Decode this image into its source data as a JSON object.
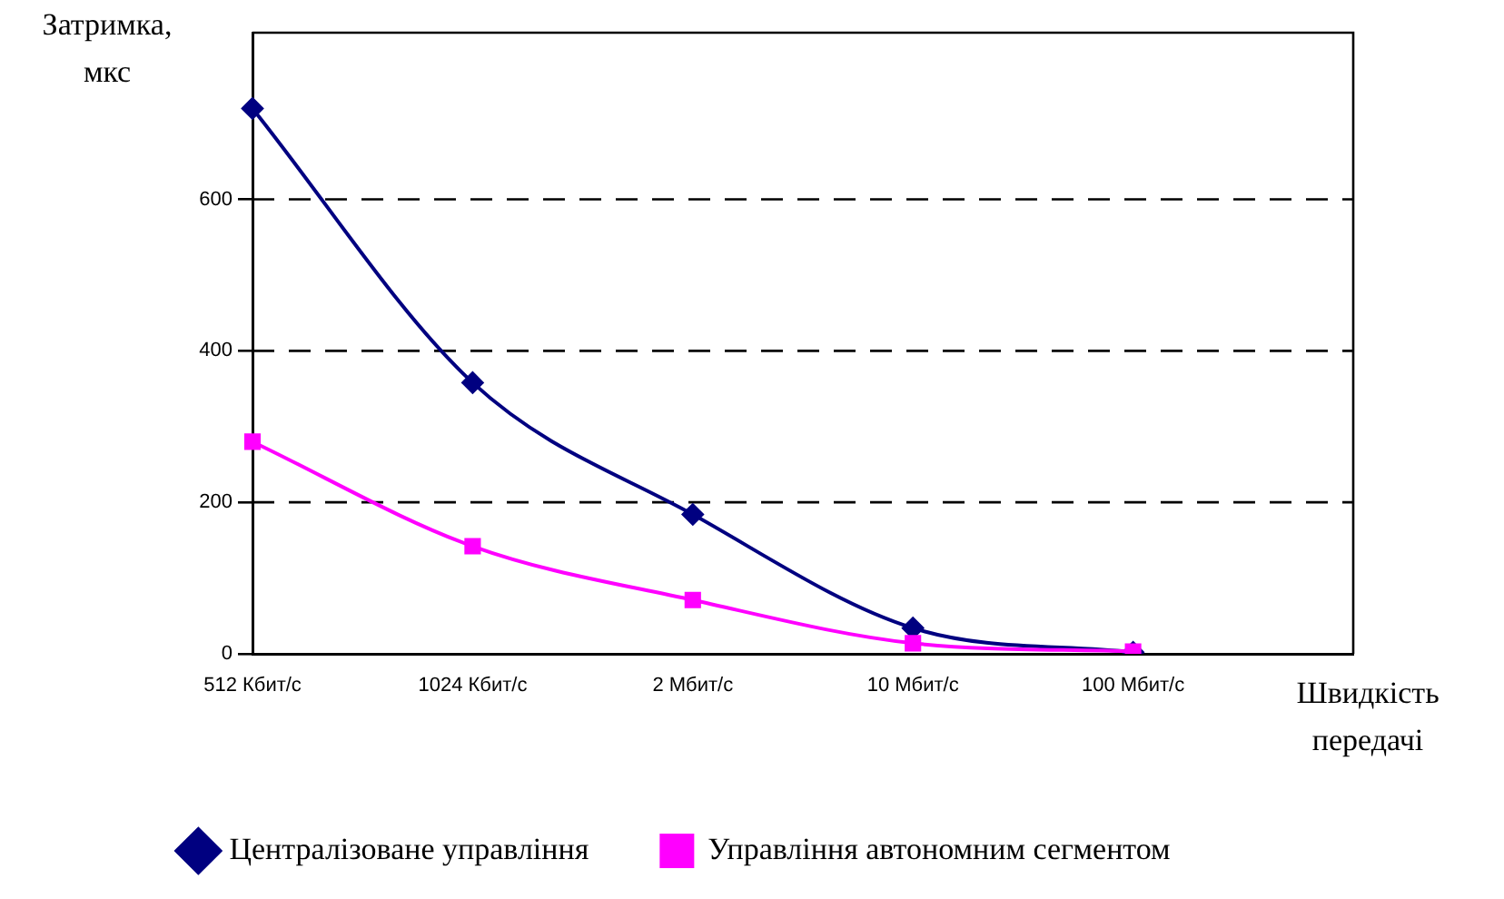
{
  "chart_data": {
    "type": "line",
    "xlabel": "Швидкість передачі",
    "ylabel": "Затримка, мкс",
    "categories": [
      "512 Кбит/с",
      "1024 Кбит/с",
      "2 Мбит/с",
      "10 Мбит/с",
      "100 Мбит/с",
      null
    ],
    "series": [
      {
        "name": "Централізоване управління",
        "color": "#000080",
        "marker": "diamond",
        "values": [
          720,
          358,
          184,
          34,
          2,
          null
        ]
      },
      {
        "name": "Управління автономним сегментом",
        "color": "#ff00ff",
        "marker": "square",
        "values": [
          280,
          142,
          71,
          14,
          3,
          null
        ]
      }
    ],
    "ylim": [
      0,
      820
    ],
    "yticks": [
      0,
      200,
      400,
      600
    ],
    "grid": "y",
    "legend": "bottom"
  }
}
